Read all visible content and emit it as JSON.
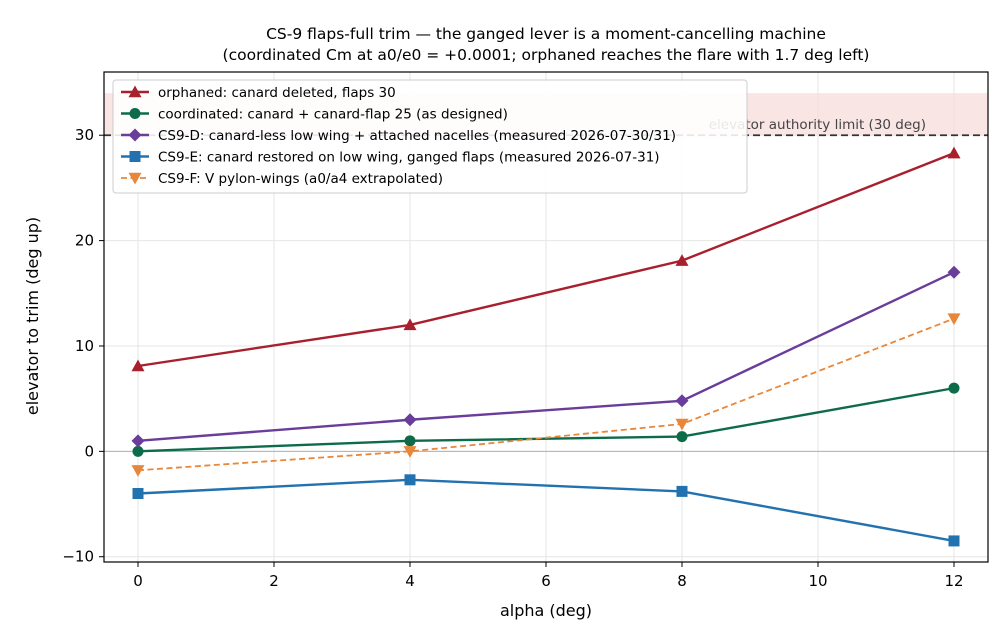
{
  "chart_data": {
    "type": "line",
    "title": "CS-9 flaps-full trim — the ganged lever is a moment-cancelling machine",
    "subtitle": "(coordinated Cm at a0/e0 = +0.0001; orphaned reaches the flare with 1.7 deg left)",
    "xlabel": "alpha (deg)",
    "ylabel": "elevator to trim (deg up)",
    "xlim": [
      -0.5,
      12.5
    ],
    "ylim": [
      -10.5,
      36
    ],
    "xticks": [
      0,
      2,
      4,
      6,
      8,
      10,
      12
    ],
    "yticks": [
      -10,
      0,
      10,
      20,
      30
    ],
    "xtick_labels": [
      "0",
      "2",
      "4",
      "6",
      "8",
      "10",
      "12"
    ],
    "ytick_labels": [
      "−10",
      "0",
      "10",
      "20",
      "30"
    ],
    "grid": true,
    "legend_position": "top-left",
    "limit": {
      "value": 30,
      "band_top": 34,
      "label": "elevator authority limit (30 deg)",
      "line_color": "#333333",
      "band_color": "#f8dcdc"
    },
    "zero_line": true,
    "series": [
      {
        "name": "orphaned: canard deleted, flaps 30",
        "x": [
          0,
          4,
          8,
          12
        ],
        "values": [
          8.1,
          12.0,
          18.1,
          28.3
        ],
        "color": "#a8202d",
        "marker": "triangle-up",
        "dashed": false
      },
      {
        "name": "coordinated: canard + canard-flap 25 (as designed)",
        "x": [
          0,
          4,
          8,
          12
        ],
        "values": [
          0.0,
          1.0,
          1.4,
          6.0
        ],
        "color": "#0e6b4a",
        "marker": "circle",
        "dashed": false
      },
      {
        "name": "CS9-D: canard-less low wing + attached nacelles (measured 2026-07-30/31)",
        "x": [
          0,
          4,
          8,
          12
        ],
        "values": [
          1.0,
          3.0,
          4.8,
          17.0
        ],
        "color": "#6a3d9a",
        "marker": "diamond",
        "dashed": false
      },
      {
        "name": "CS9-E: canard restored on low wing, ganged flaps (measured 2026-07-31)",
        "x": [
          0,
          4,
          8,
          12
        ],
        "values": [
          -4.0,
          -2.7,
          -3.8,
          -8.5
        ],
        "color": "#2272b0",
        "marker": "square",
        "dashed": false
      },
      {
        "name": "CS9-F: V pylon-wings (a0/a4 extrapolated)",
        "x": [
          0,
          4,
          8,
          12
        ],
        "values": [
          -1.8,
          0.0,
          2.6,
          12.6
        ],
        "color": "#e8873a",
        "marker": "triangle-down",
        "dashed": true
      }
    ]
  }
}
